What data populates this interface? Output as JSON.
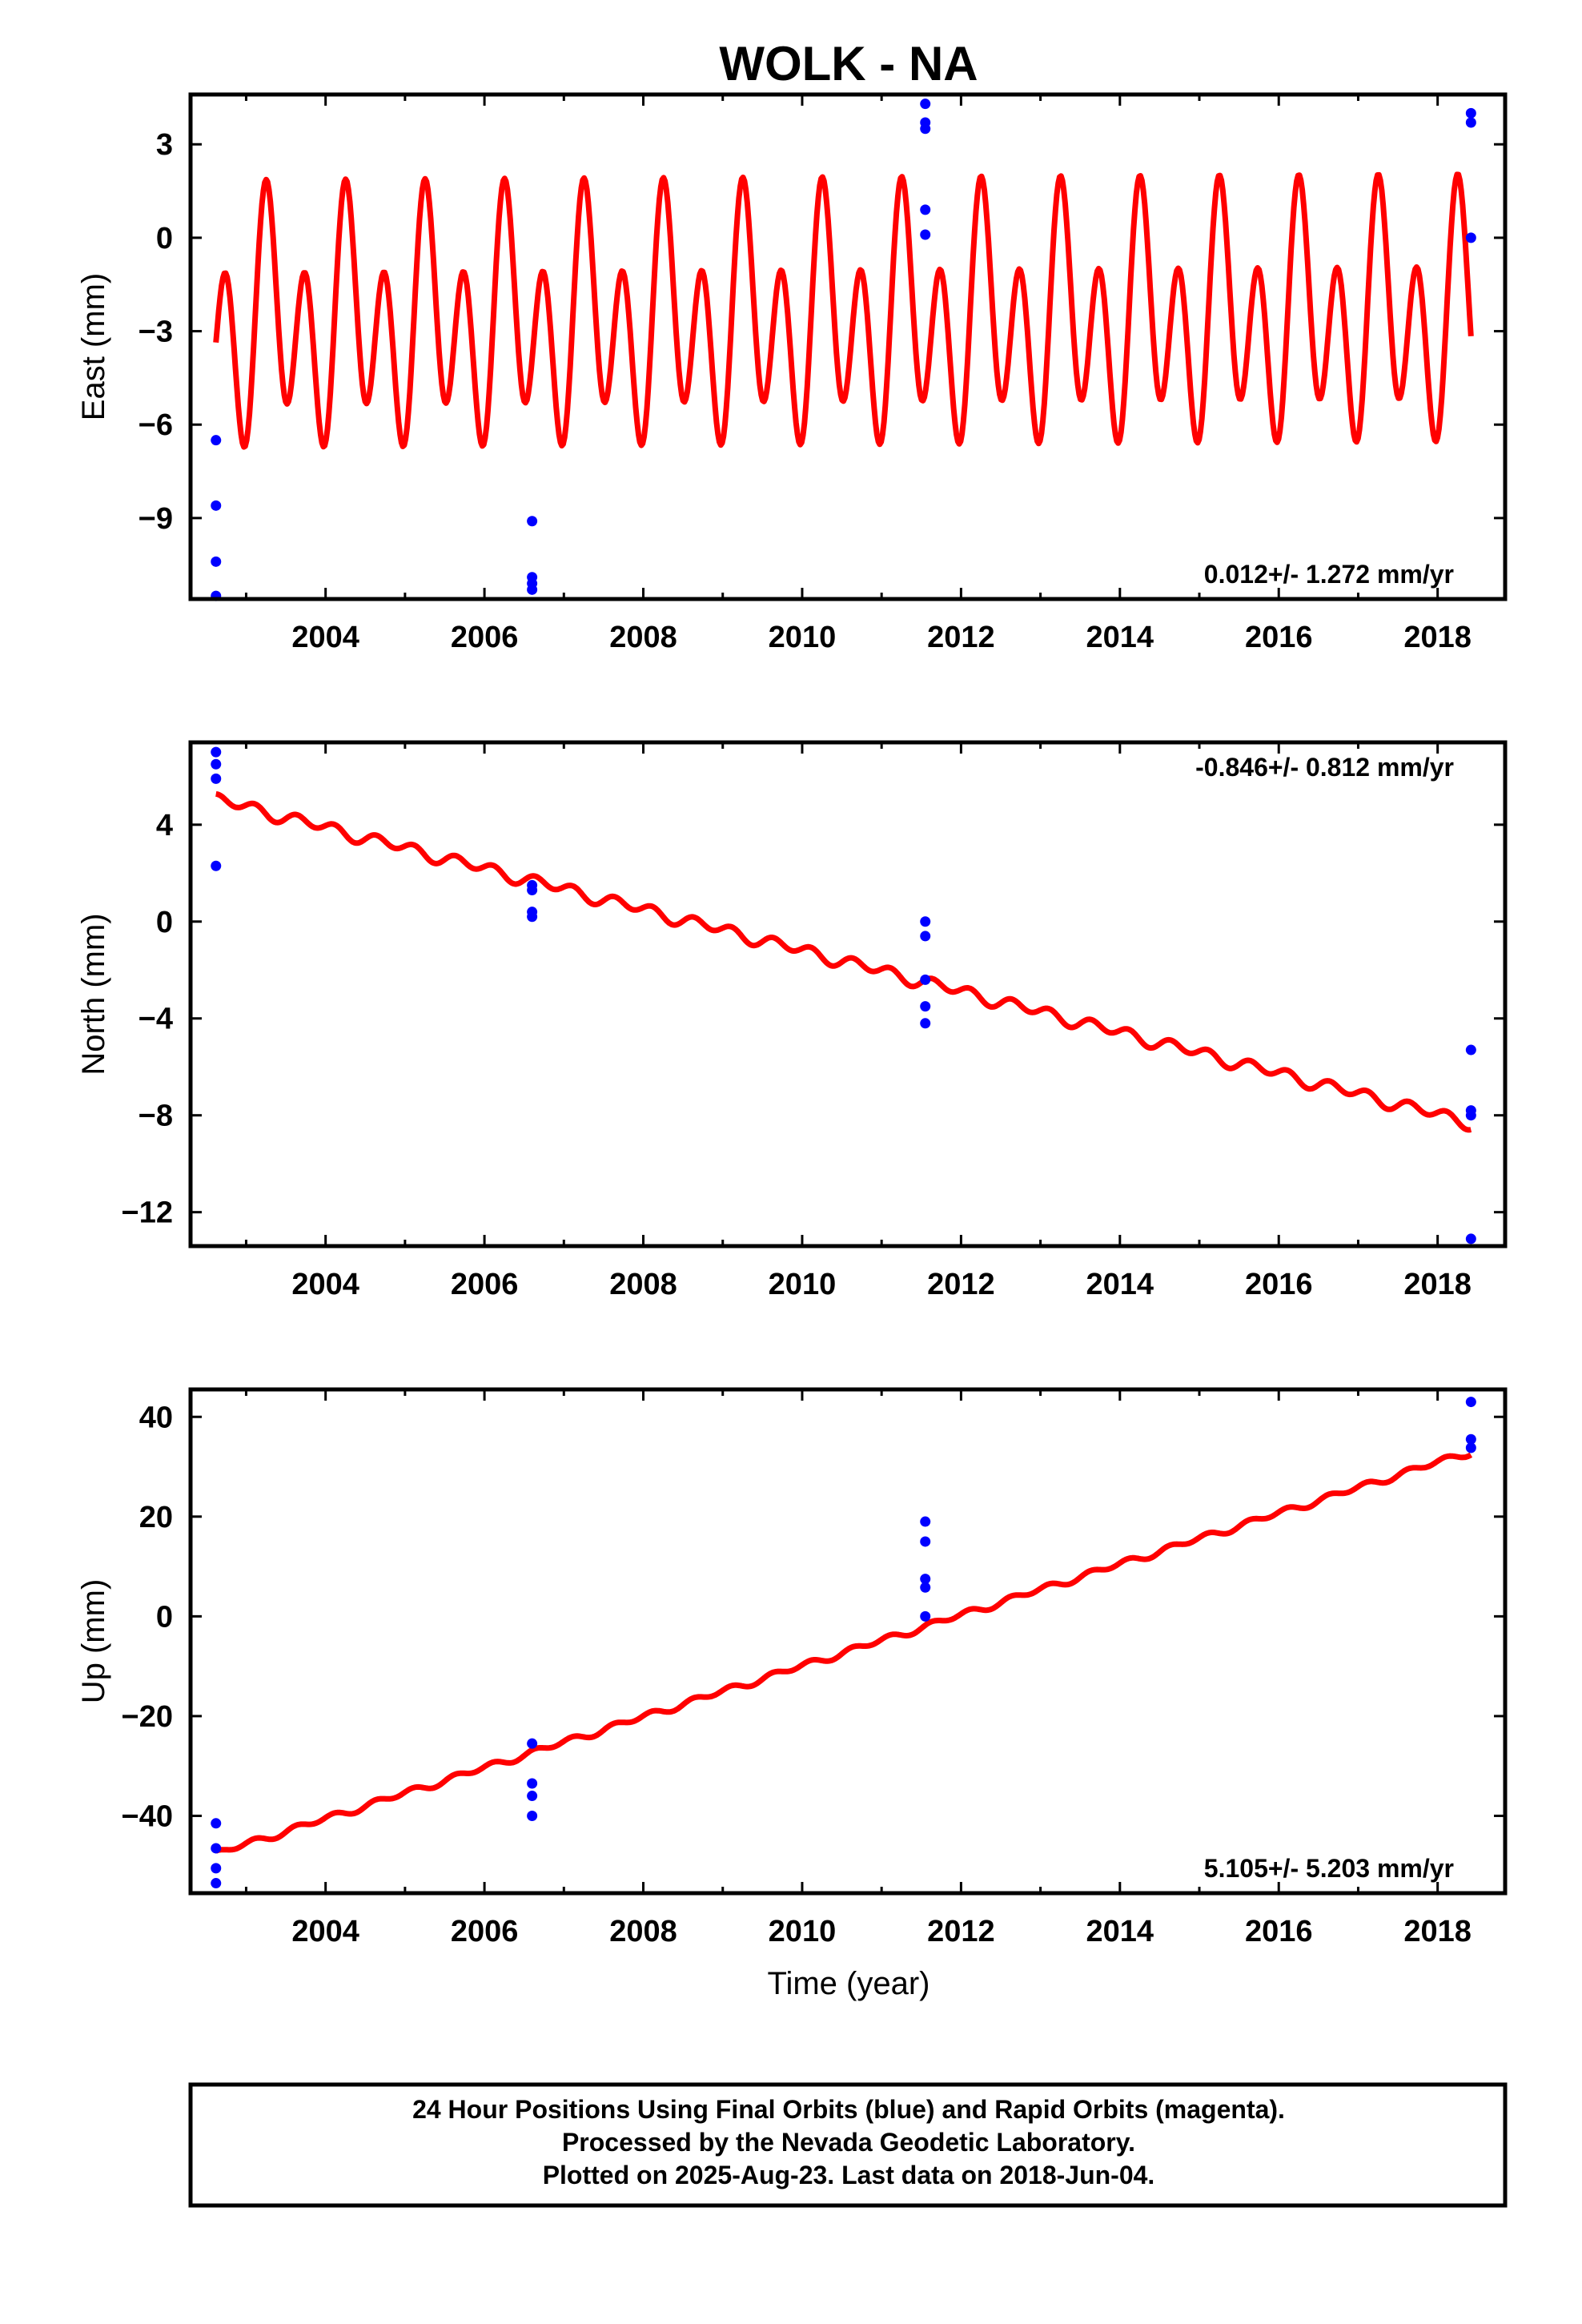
{
  "title": "WOLK - NA",
  "xlabel": "Time (year)",
  "footer": [
    "24 Hour Positions Using Final Orbits (blue) and Rapid Orbits (magenta).",
    "Processed by the Nevada Geodetic Laboratory.",
    "Plotted on 2025-Aug-23. Last data on 2018-Jun-04."
  ],
  "colors": {
    "observations": "#0000ff",
    "model": "#ff0000",
    "axes": "#000000"
  },
  "chart_data": [
    {
      "type": "scatter",
      "component": "East",
      "ylabel": "East (mm)",
      "rate_label": "0.012+/- 1.272 mm/yr",
      "rate_position": "bottom-right",
      "xlim": [
        2002.3,
        2018.85
      ],
      "ylim": [
        -11.6,
        4.6
      ],
      "xticks": [
        2004,
        2006,
        2008,
        2010,
        2012,
        2014,
        2016,
        2018
      ],
      "yticks": [
        3,
        0,
        -3,
        -6,
        -9
      ],
      "ytick_labels": [
        "3",
        "0",
        "−3",
        "−6",
        "−9"
      ],
      "grid": false,
      "points": [
        {
          "x": 2002.62,
          "y": -6.5
        },
        {
          "x": 2002.62,
          "y": -8.6
        },
        {
          "x": 2002.62,
          "y": -10.4
        },
        {
          "x": 2002.62,
          "y": -11.5
        },
        {
          "x": 2006.6,
          "y": -9.1
        },
        {
          "x": 2006.6,
          "y": -10.9
        },
        {
          "x": 2006.6,
          "y": -11.1
        },
        {
          "x": 2006.6,
          "y": -11.3
        },
        {
          "x": 2011.55,
          "y": 4.3
        },
        {
          "x": 2011.55,
          "y": 3.7
        },
        {
          "x": 2011.55,
          "y": 3.5
        },
        {
          "x": 2011.55,
          "y": 0.9
        },
        {
          "x": 2011.55,
          "y": 0.1
        },
        {
          "x": 2018.42,
          "y": 4.0
        },
        {
          "x": 2018.42,
          "y": 3.7
        },
        {
          "x": 2018.42,
          "y": 0.0
        }
      ],
      "model": {
        "x_start": 2002.62,
        "x_end": 2018.42,
        "intercept_at_start": -2.8,
        "slope_per_year": 0.012,
        "annual_amplitude": 1.65,
        "annual_phase_deg": 200,
        "semiannual_amplitude": 3.15,
        "semiannual_phase_deg": 0
      }
    },
    {
      "type": "scatter",
      "component": "North",
      "ylabel": "North (mm)",
      "rate_label": "-0.846+/- 0.812 mm/yr",
      "rate_position": "top-right",
      "xlim": [
        2002.3,
        2018.85
      ],
      "ylim": [
        -13.4,
        7.4
      ],
      "xticks": [
        2004,
        2006,
        2008,
        2010,
        2012,
        2014,
        2016,
        2018
      ],
      "yticks": [
        4,
        0,
        -4,
        -8,
        -12
      ],
      "ytick_labels": [
        "4",
        "0",
        "−4",
        "−8",
        "−12"
      ],
      "grid": false,
      "points": [
        {
          "x": 2002.62,
          "y": 7.0
        },
        {
          "x": 2002.62,
          "y": 6.5
        },
        {
          "x": 2002.62,
          "y": 5.9
        },
        {
          "x": 2002.62,
          "y": 2.3
        },
        {
          "x": 2006.6,
          "y": 1.5
        },
        {
          "x": 2006.6,
          "y": 1.3
        },
        {
          "x": 2006.6,
          "y": 0.4
        },
        {
          "x": 2006.6,
          "y": 0.2
        },
        {
          "x": 2011.55,
          "y": 0.0
        },
        {
          "x": 2011.55,
          "y": -0.6
        },
        {
          "x": 2011.55,
          "y": -2.4
        },
        {
          "x": 2011.55,
          "y": -3.5
        },
        {
          "x": 2011.55,
          "y": -4.2
        },
        {
          "x": 2018.42,
          "y": -5.3
        },
        {
          "x": 2018.42,
          "y": -7.8
        },
        {
          "x": 2018.42,
          "y": -8.0
        },
        {
          "x": 2018.42,
          "y": -13.1
        }
      ],
      "model": {
        "x_start": 2002.62,
        "x_end": 2018.42,
        "intercept_at_start": 5.05,
        "slope_per_year": -0.846,
        "annual_amplitude": 0.1,
        "annual_phase_deg": 0,
        "semiannual_amplitude": 0.22,
        "semiannual_phase_deg": 90
      }
    },
    {
      "type": "scatter",
      "component": "Up",
      "ylabel": "Up (mm)",
      "rate_label": "5.105+/- 5.203 mm/yr",
      "rate_position": "bottom-right",
      "xlim": [
        2002.3,
        2018.85
      ],
      "ylim": [
        -55.5,
        45.5
      ],
      "xticks": [
        2004,
        2006,
        2008,
        2010,
        2012,
        2014,
        2016,
        2018
      ],
      "yticks": [
        40,
        20,
        0,
        -20,
        -40
      ],
      "ytick_labels": [
        "40",
        "20",
        "0",
        "−20",
        "−40"
      ],
      "grid": false,
      "points": [
        {
          "x": 2002.62,
          "y": -41.5
        },
        {
          "x": 2002.62,
          "y": -46.5
        },
        {
          "x": 2002.62,
          "y": -50.5
        },
        {
          "x": 2002.62,
          "y": -53.5
        },
        {
          "x": 2006.6,
          "y": -25.5
        },
        {
          "x": 2006.6,
          "y": -33.5
        },
        {
          "x": 2006.6,
          "y": -36.0
        },
        {
          "x": 2006.6,
          "y": -40.0
        },
        {
          "x": 2011.55,
          "y": 19.0
        },
        {
          "x": 2011.55,
          "y": 15.0
        },
        {
          "x": 2011.55,
          "y": 7.5
        },
        {
          "x": 2011.55,
          "y": 5.8
        },
        {
          "x": 2011.55,
          "y": 0.0
        },
        {
          "x": 2018.42,
          "y": 43.0
        },
        {
          "x": 2018.42,
          "y": 35.5
        },
        {
          "x": 2018.42,
          "y": 33.8
        }
      ],
      "model": {
        "x_start": 2002.62,
        "x_end": 2018.42,
        "intercept_at_start": -47.6,
        "slope_per_year": 5.105,
        "annual_amplitude": 0.25,
        "annual_phase_deg": 0,
        "semiannual_amplitude": 0.55,
        "semiannual_phase_deg": 90
      }
    }
  ]
}
